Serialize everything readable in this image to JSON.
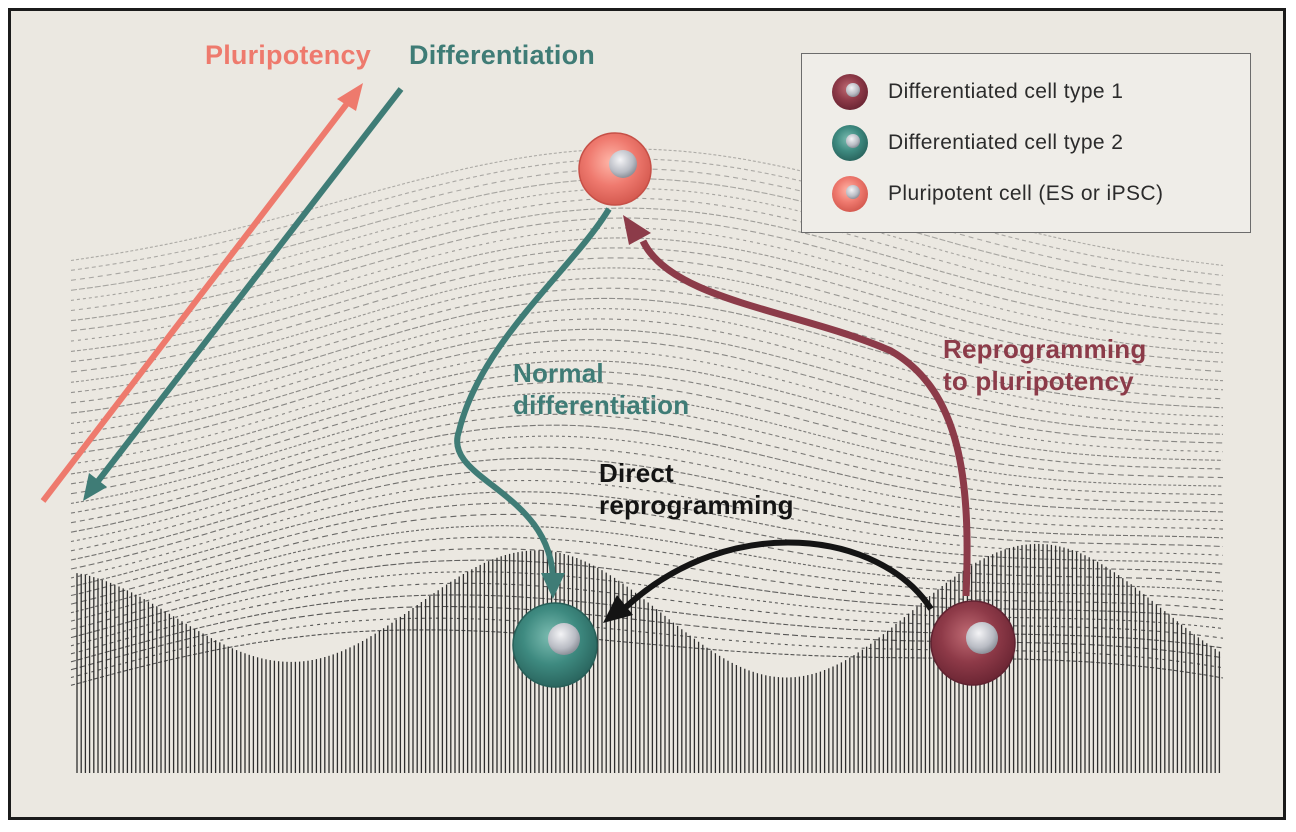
{
  "axis": {
    "pluripotency_label": "Pluripotency",
    "differentiation_label": "Differentiation"
  },
  "arrows": {
    "normal_differentiation": "Normal\ndifferentiation",
    "direct_reprogramming": "Direct\nreprogramming",
    "reprogramming_to_pluripotency": "Reprogramming\nto pluripotency"
  },
  "legend": {
    "items": [
      {
        "label": "Differentiated cell type 1",
        "color": "#8e3a48"
      },
      {
        "label": "Differentiated cell type 2",
        "color": "#3e8a80"
      },
      {
        "label": "Pluripotent cell (ES or iPSC)",
        "color": "#ef7a6f"
      }
    ]
  },
  "colors": {
    "pluripotency": "#ee7a6d",
    "differentiation": "#3f7c76",
    "reprogramming": "#8c3b49",
    "direct": "#141414",
    "background": "#ebe8e1"
  }
}
